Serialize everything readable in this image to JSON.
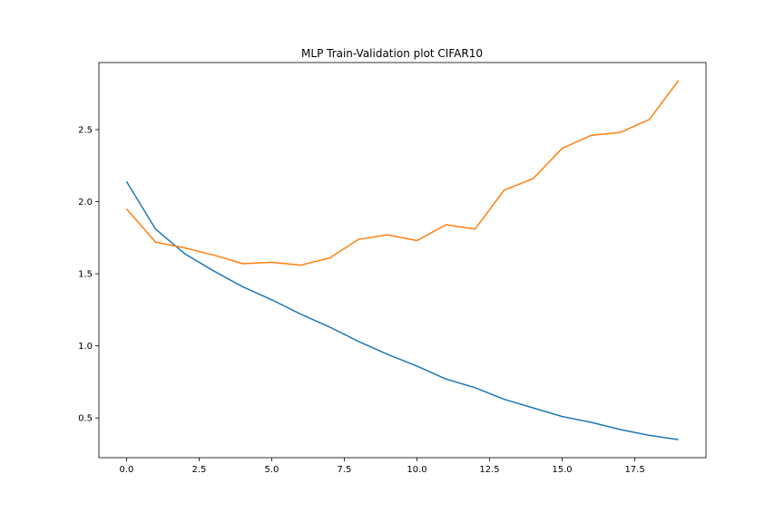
{
  "chart_data": {
    "type": "line",
    "title": "MLP Train-Validation plot CIFAR10",
    "xlabel": "",
    "ylabel": "",
    "xlim": [
      -0.95,
      19.95
    ],
    "ylim": [
      0.225,
      2.965
    ],
    "xticks": [
      0.0,
      2.5,
      5.0,
      7.5,
      10.0,
      12.5,
      15.0,
      17.5
    ],
    "xtick_labels": [
      "0.0",
      "2.5",
      "5.0",
      "7.5",
      "10.0",
      "12.5",
      "15.0",
      "17.5"
    ],
    "yticks": [
      0.5,
      1.0,
      1.5,
      2.0,
      2.5
    ],
    "ytick_labels": [
      "0.5",
      "1.0",
      "1.5",
      "2.0",
      "2.5"
    ],
    "grid": false,
    "legend": "none",
    "x": [
      0,
      1,
      2,
      3,
      4,
      5,
      6,
      7,
      8,
      9,
      10,
      11,
      12,
      13,
      14,
      15,
      16,
      17,
      18,
      19
    ],
    "series": [
      {
        "color": "#1f77b4",
        "values": [
          2.14,
          1.81,
          1.64,
          1.52,
          1.41,
          1.32,
          1.22,
          1.13,
          1.03,
          0.94,
          0.86,
          0.77,
          0.71,
          0.63,
          0.57,
          0.51,
          0.47,
          0.42,
          0.38,
          0.35
        ]
      },
      {
        "color": "#ff7f0e",
        "values": [
          1.95,
          1.72,
          1.68,
          1.63,
          1.57,
          1.58,
          1.56,
          1.61,
          1.74,
          1.77,
          1.73,
          1.84,
          1.81,
          2.08,
          2.16,
          2.37,
          2.46,
          2.48,
          2.57,
          2.84
        ]
      }
    ]
  }
}
